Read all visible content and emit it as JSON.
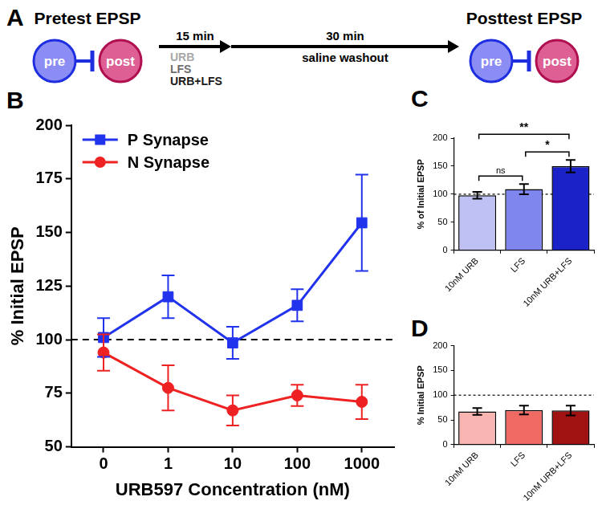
{
  "diagram": {
    "panel": "A",
    "left_title": "Pretest EPSP",
    "right_title": "Posttest EPSP",
    "left_cells": [
      "pre",
      "post"
    ],
    "right_cells": [
      "pre",
      "post"
    ],
    "steps": [
      {
        "label": "15 min",
        "items": [
          "URB",
          "LFS",
          "URB+LFS"
        ]
      },
      {
        "label": "30 min",
        "items": [
          "saline washout"
        ]
      }
    ]
  },
  "chart_data": [
    {
      "panel": "B",
      "type": "line",
      "x_label": "URB597 Concentration (nM)",
      "y_label": "% Initial EPSP",
      "categories": [
        "0",
        "1",
        "10",
        "100",
        "1000"
      ],
      "series": [
        {
          "name": "P Synapse",
          "color": "#2233ee",
          "marker": "square",
          "values": [
            101,
            120,
            98.5,
            116,
            154.5
          ],
          "errors": [
            9,
            10,
            7.5,
            7.5,
            22.5
          ]
        },
        {
          "name": "N Synapse",
          "color": "#ee2222",
          "marker": "circle",
          "values": [
            94,
            77.5,
            67,
            74,
            71
          ],
          "errors": [
            8.5,
            10.5,
            7,
            5,
            8
          ]
        }
      ],
      "ylim": [
        50,
        200
      ],
      "yticks": [
        50,
        75,
        100,
        125,
        150,
        175,
        200
      ],
      "hline": 100,
      "grid": false,
      "legend": "upper left"
    },
    {
      "panel": "C",
      "type": "bar",
      "y_label": "% of Initial EPSP",
      "categories": [
        "10nM URB",
        "LFS",
        "10nM URB+LFS"
      ],
      "values": [
        98,
        109,
        150
      ],
      "errors": [
        6,
        9,
        11
      ],
      "colors": [
        "#bfc1f5",
        "#7f86ee",
        "#1b22c8"
      ],
      "ylim": [
        0,
        200
      ],
      "yticks": [
        0,
        50,
        100,
        150,
        200
      ],
      "hline": 100,
      "grid": false,
      "comparisons": [
        {
          "between": [
            "10nM URB",
            "LFS"
          ],
          "label": "ns"
        },
        {
          "between": [
            "LFS",
            "10nM URB+LFS"
          ],
          "label": "*"
        },
        {
          "between": [
            "10nM URB",
            "10nM URB+LFS"
          ],
          "label": "**"
        }
      ]
    },
    {
      "panel": "D",
      "type": "bar",
      "y_label": "% Initial EPSP",
      "categories": [
        "10nM URB",
        "LFS",
        "10nM URB+LFS"
      ],
      "values": [
        67,
        70,
        69
      ],
      "errors": [
        7,
        9,
        10
      ],
      "colors": [
        "#f8b4b0",
        "#f06a64",
        "#a01212"
      ],
      "ylim": [
        0,
        200
      ],
      "yticks": [
        0,
        50,
        100,
        150,
        200
      ],
      "hline": 100,
      "grid": false
    }
  ]
}
